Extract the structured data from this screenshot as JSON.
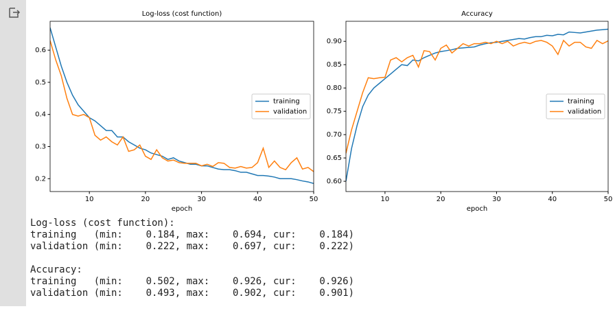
{
  "chart_data": [
    {
      "type": "line",
      "title": "Log-loss (cost function)",
      "xlabel": "epoch",
      "x": [
        3,
        4,
        5,
        6,
        7,
        8,
        9,
        10,
        11,
        12,
        13,
        14,
        15,
        16,
        17,
        18,
        19,
        20,
        21,
        22,
        23,
        24,
        25,
        26,
        27,
        28,
        29,
        30,
        31,
        32,
        33,
        34,
        35,
        36,
        37,
        38,
        39,
        40,
        41,
        42,
        43,
        44,
        45,
        46,
        47,
        48,
        49,
        50
      ],
      "series": [
        {
          "name": "training",
          "color": "#1f77b4",
          "values": [
            0.67,
            0.61,
            0.55,
            0.5,
            0.46,
            0.43,
            0.41,
            0.39,
            0.38,
            0.365,
            0.35,
            0.35,
            0.33,
            0.33,
            0.315,
            0.305,
            0.295,
            0.29,
            0.28,
            0.275,
            0.27,
            0.26,
            0.265,
            0.255,
            0.25,
            0.245,
            0.245,
            0.24,
            0.24,
            0.235,
            0.23,
            0.228,
            0.228,
            0.225,
            0.22,
            0.22,
            0.215,
            0.21,
            0.21,
            0.208,
            0.205,
            0.2,
            0.2,
            0.2,
            0.197,
            0.193,
            0.19,
            0.185
          ]
        },
        {
          "name": "validation",
          "color": "#ff7f0e",
          "values": [
            0.63,
            0.57,
            0.52,
            0.45,
            0.4,
            0.395,
            0.4,
            0.39,
            0.335,
            0.32,
            0.33,
            0.315,
            0.305,
            0.33,
            0.285,
            0.29,
            0.305,
            0.27,
            0.26,
            0.29,
            0.265,
            0.255,
            0.258,
            0.25,
            0.248,
            0.248,
            0.248,
            0.24,
            0.245,
            0.238,
            0.25,
            0.248,
            0.235,
            0.233,
            0.238,
            0.233,
            0.235,
            0.25,
            0.295,
            0.235,
            0.255,
            0.235,
            0.228,
            0.25,
            0.265,
            0.23,
            0.235,
            0.222
          ]
        }
      ],
      "xlim": [
        3,
        50
      ],
      "xticks": [
        10,
        20,
        30,
        40,
        50
      ],
      "ylim": [
        0.16,
        0.69
      ],
      "yticks": [
        0.2,
        0.3,
        0.4,
        0.5,
        0.6
      ],
      "legend": "center right",
      "grid": false
    },
    {
      "type": "line",
      "title": "Accuracy",
      "xlabel": "epoch",
      "x": [
        3,
        4,
        5,
        6,
        7,
        8,
        9,
        10,
        11,
        12,
        13,
        14,
        15,
        16,
        17,
        18,
        19,
        20,
        21,
        22,
        23,
        24,
        25,
        26,
        27,
        28,
        29,
        30,
        31,
        32,
        33,
        34,
        35,
        36,
        37,
        38,
        39,
        40,
        41,
        42,
        43,
        44,
        45,
        46,
        47,
        48,
        49,
        50
      ],
      "series": [
        {
          "name": "training",
          "color": "#1f77b4",
          "values": [
            0.6,
            0.67,
            0.72,
            0.76,
            0.785,
            0.8,
            0.81,
            0.82,
            0.83,
            0.84,
            0.85,
            0.848,
            0.86,
            0.858,
            0.865,
            0.87,
            0.875,
            0.878,
            0.88,
            0.882,
            0.885,
            0.886,
            0.887,
            0.888,
            0.892,
            0.895,
            0.897,
            0.898,
            0.9,
            0.902,
            0.904,
            0.906,
            0.905,
            0.908,
            0.91,
            0.91,
            0.913,
            0.912,
            0.915,
            0.914,
            0.92,
            0.919,
            0.918,
            0.92,
            0.922,
            0.924,
            0.925,
            0.926
          ]
        },
        {
          "name": "validation",
          "color": "#ff7f0e",
          "values": [
            0.66,
            0.71,
            0.75,
            0.79,
            0.822,
            0.82,
            0.822,
            0.823,
            0.86,
            0.865,
            0.856,
            0.865,
            0.87,
            0.845,
            0.88,
            0.878,
            0.86,
            0.885,
            0.892,
            0.875,
            0.885,
            0.895,
            0.89,
            0.895,
            0.895,
            0.898,
            0.895,
            0.9,
            0.895,
            0.9,
            0.89,
            0.895,
            0.898,
            0.895,
            0.9,
            0.902,
            0.898,
            0.89,
            0.872,
            0.902,
            0.89,
            0.898,
            0.898,
            0.888,
            0.885,
            0.902,
            0.895,
            0.901
          ]
        }
      ],
      "xlim": [
        3,
        50
      ],
      "xticks": [
        10,
        20,
        30,
        40,
        50
      ],
      "ylim": [
        0.578,
        0.943
      ],
      "yticks": [
        {
          "value": 0.6,
          "label": "0.60"
        },
        0.65,
        {
          "value": 0.7,
          "label": "0.70"
        },
        0.75,
        {
          "value": 0.8,
          "label": "0.80"
        },
        0.85,
        {
          "value": 0.9,
          "label": "0.90"
        }
      ],
      "legend": "center right",
      "grid": false
    }
  ],
  "output": {
    "sections": [
      {
        "title": "Log-loss (cost function):",
        "lines": [
          "training   (min:    0.184, max:    0.694, cur:    0.184)",
          "validation (min:    0.222, max:    0.697, cur:    0.222)"
        ]
      },
      {
        "title": "Accuracy:",
        "lines": [
          "training   (min:    0.502, max:    0.926, cur:    0.926)",
          "validation (min:    0.493, max:    0.902, cur:    0.901)"
        ]
      }
    ]
  }
}
